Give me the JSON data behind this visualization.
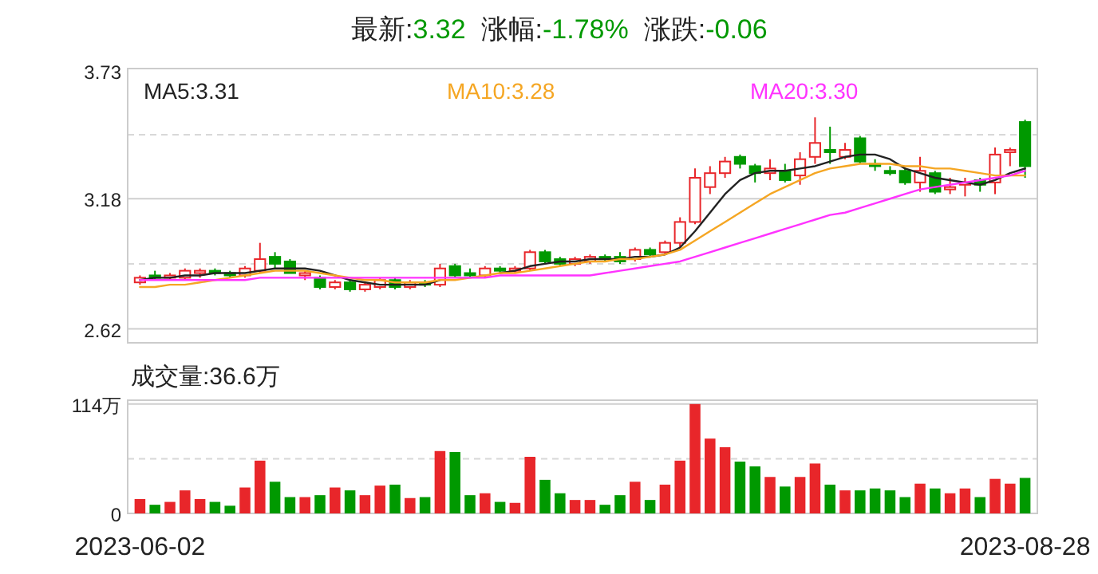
{
  "chart_data": [
    {
      "type": "candlestick",
      "title": "最新:3.32  涨幅:-1.78%  涨跌:-0.06",
      "categories": [
        null,
        null,
        null,
        null,
        null,
        null,
        null,
        null,
        null,
        null,
        null,
        null,
        null,
        null,
        null,
        null,
        null,
        null,
        null,
        null,
        null,
        null,
        null,
        null,
        null,
        null,
        null,
        null,
        null,
        null,
        null,
        null,
        null,
        null,
        null,
        null,
        null,
        null,
        null,
        null,
        null,
        null,
        null,
        null,
        null,
        null,
        null,
        null,
        null,
        null,
        null,
        null,
        null,
        null,
        null,
        null,
        null,
        null,
        null,
        null
      ],
      "ohlc": [
        [
          2.82,
          2.85,
          2.81,
          2.84
        ],
        [
          2.85,
          2.87,
          2.83,
          2.84
        ],
        [
          2.84,
          2.86,
          2.83,
          2.85
        ],
        [
          2.84,
          2.88,
          2.83,
          2.87
        ],
        [
          2.86,
          2.88,
          2.84,
          2.87
        ],
        [
          2.87,
          2.88,
          2.85,
          2.86
        ],
        [
          2.86,
          2.87,
          2.84,
          2.85
        ],
        [
          2.85,
          2.89,
          2.84,
          2.88
        ],
        [
          2.87,
          2.99,
          2.86,
          2.92
        ],
        [
          2.93,
          2.95,
          2.88,
          2.9
        ],
        [
          2.91,
          2.92,
          2.86,
          2.86
        ],
        [
          2.85,
          2.87,
          2.83,
          2.86
        ],
        [
          2.84,
          2.85,
          2.79,
          2.8
        ],
        [
          2.8,
          2.83,
          2.79,
          2.82
        ],
        [
          2.82,
          2.83,
          2.78,
          2.79
        ],
        [
          2.79,
          2.82,
          2.78,
          2.81
        ],
        [
          2.8,
          2.84,
          2.79,
          2.83
        ],
        [
          2.83,
          2.84,
          2.79,
          2.8
        ],
        [
          2.8,
          2.83,
          2.79,
          2.82
        ],
        [
          2.82,
          2.83,
          2.8,
          2.81
        ],
        [
          2.81,
          2.9,
          2.8,
          2.88
        ],
        [
          2.89,
          2.9,
          2.84,
          2.85
        ],
        [
          2.86,
          2.88,
          2.84,
          2.85
        ],
        [
          2.85,
          2.89,
          2.84,
          2.88
        ],
        [
          2.88,
          2.89,
          2.86,
          2.87
        ],
        [
          2.87,
          2.89,
          2.86,
          2.88
        ],
        [
          2.88,
          2.96,
          2.87,
          2.95
        ],
        [
          2.95,
          2.96,
          2.9,
          2.91
        ],
        [
          2.92,
          2.93,
          2.89,
          2.9
        ],
        [
          2.9,
          2.93,
          2.89,
          2.92
        ],
        [
          2.91,
          2.94,
          2.9,
          2.93
        ],
        [
          2.93,
          2.94,
          2.91,
          2.92
        ],
        [
          2.93,
          2.95,
          2.9,
          2.91
        ],
        [
          2.92,
          2.97,
          2.91,
          2.96
        ],
        [
          2.96,
          2.97,
          2.93,
          2.94
        ],
        [
          2.95,
          3.0,
          2.94,
          2.99
        ],
        [
          2.99,
          3.1,
          2.97,
          3.08
        ],
        [
          3.08,
          3.31,
          3.07,
          3.27
        ],
        [
          3.23,
          3.32,
          3.2,
          3.29
        ],
        [
          3.29,
          3.36,
          3.27,
          3.34
        ],
        [
          3.36,
          3.37,
          3.31,
          3.33
        ],
        [
          3.32,
          3.33,
          3.25,
          3.29
        ],
        [
          3.29,
          3.35,
          3.26,
          3.31
        ],
        [
          3.3,
          3.33,
          3.25,
          3.26
        ],
        [
          3.28,
          3.38,
          3.24,
          3.35
        ],
        [
          3.36,
          3.53,
          3.33,
          3.42
        ],
        [
          3.39,
          3.49,
          3.33,
          3.38
        ],
        [
          3.36,
          3.42,
          3.35,
          3.39
        ],
        [
          3.44,
          3.45,
          3.33,
          3.34
        ],
        [
          3.33,
          3.35,
          3.3,
          3.32
        ],
        [
          3.3,
          3.32,
          3.28,
          3.29
        ],
        [
          3.3,
          3.31,
          3.24,
          3.25
        ],
        [
          3.25,
          3.36,
          3.21,
          3.3
        ],
        [
          3.29,
          3.3,
          3.2,
          3.21
        ],
        [
          3.22,
          3.27,
          3.2,
          3.23
        ],
        [
          3.24,
          3.27,
          3.19,
          3.25
        ],
        [
          3.26,
          3.27,
          3.21,
          3.24
        ],
        [
          3.25,
          3.4,
          3.2,
          3.37
        ],
        [
          3.38,
          3.4,
          3.32,
          3.39
        ],
        [
          3.51,
          3.52,
          3.27,
          3.32
        ]
      ],
      "colors": [
        "#e8262a",
        "#009900",
        "#e8262a",
        "#e8262a",
        "#e8262a",
        "#009900",
        "#009900",
        "#e8262a",
        "#e8262a",
        "#009900",
        "#009900",
        "#e8262a",
        "#009900",
        "#e8262a",
        "#009900",
        "#e8262a",
        "#e8262a",
        "#009900",
        "#e8262a",
        "#009900",
        "#e8262a",
        "#009900",
        "#009900",
        "#e8262a",
        "#009900",
        "#e8262a",
        "#e8262a",
        "#009900",
        "#009900",
        "#e8262a",
        "#e8262a",
        "#009900",
        "#009900",
        "#e8262a",
        "#009900",
        "#e8262a",
        "#e8262a",
        "#e8262a",
        "#e8262a",
        "#e8262a",
        "#009900",
        "#009900",
        "#e8262a",
        "#009900",
        "#e8262a",
        "#e8262a",
        "#009900",
        "#e8262a",
        "#009900",
        "#009900",
        "#009900",
        "#009900",
        "#e8262a",
        "#009900",
        "#e8262a",
        "#e8262a",
        "#009900",
        "#e8262a",
        "#e8262a",
        "#009900"
      ],
      "series": [
        {
          "type": "line",
          "name": "MA5:3.31",
          "color": "#222222",
          "values": [
            2.83,
            2.84,
            2.84,
            2.85,
            2.85,
            2.86,
            2.86,
            2.86,
            2.87,
            2.88,
            2.88,
            2.88,
            2.87,
            2.85,
            2.83,
            2.82,
            2.81,
            2.81,
            2.81,
            2.81,
            2.83,
            null,
            null,
            null,
            2.86,
            2.87,
            2.89,
            2.9,
            2.91,
            2.91,
            2.92,
            2.92,
            2.92,
            2.93,
            2.93,
            2.94,
            2.97,
            3.04,
            3.12,
            3.2,
            3.26,
            3.29,
            3.3,
            3.3,
            3.31,
            3.32,
            3.34,
            3.36,
            3.37,
            3.37,
            3.35,
            3.31,
            3.29,
            3.27,
            3.26,
            3.25,
            3.24,
            3.26,
            3.29,
            3.31
          ]
        },
        {
          "type": "line",
          "name": "MA10:3.28",
          "color": "#f5a623",
          "values": [
            2.8,
            2.8,
            2.81,
            2.81,
            2.82,
            2.83,
            2.84,
            2.85,
            2.86,
            2.87,
            2.87,
            2.87,
            2.86,
            2.85,
            2.84,
            2.83,
            2.83,
            2.82,
            2.82,
            2.82,
            2.83,
            2.83,
            2.84,
            2.85,
            2.86,
            2.86,
            2.87,
            2.88,
            2.89,
            2.9,
            2.91,
            2.91,
            2.92,
            2.92,
            2.93,
            2.94,
            2.96,
            3.0,
            3.04,
            3.08,
            3.12,
            3.16,
            3.2,
            3.23,
            3.26,
            3.29,
            3.31,
            3.32,
            3.33,
            3.33,
            3.33,
            3.32,
            3.32,
            3.31,
            3.31,
            3.3,
            3.29,
            3.28,
            3.28,
            3.28
          ]
        },
        {
          "type": "line",
          "name": "MA20:3.30",
          "color": "#ff33ff",
          "values": [
            2.83,
            2.83,
            2.83,
            2.83,
            2.83,
            2.83,
            2.83,
            2.83,
            2.84,
            2.84,
            2.84,
            2.84,
            2.84,
            2.84,
            2.84,
            2.84,
            2.84,
            2.84,
            2.84,
            2.84,
            2.84,
            2.84,
            2.84,
            2.84,
            2.85,
            2.85,
            2.85,
            2.85,
            2.85,
            2.85,
            2.85,
            2.86,
            2.87,
            2.88,
            2.89,
            2.9,
            2.91,
            2.93,
            2.95,
            2.97,
            2.99,
            3.01,
            3.03,
            3.05,
            3.07,
            3.09,
            3.11,
            3.12,
            3.14,
            3.16,
            3.18,
            3.2,
            3.22,
            3.23,
            3.24,
            3.25,
            3.26,
            3.27,
            3.28,
            3.3
          ]
        }
      ],
      "ylim": [
        2.56,
        3.74
      ],
      "yticks": [
        2.62,
        {
          "value": 2.9,
          "label": null
        },
        3.18,
        {
          "value": 3.455,
          "label": null
        },
        3.73
      ],
      "grid": "y",
      "legend": "top",
      "tick_labels": "y"
    },
    {
      "type": "bar",
      "title": "成交量:36.6万",
      "categories": [
        "2023-06-02",
        null,
        null,
        null,
        null,
        null,
        null,
        null,
        null,
        null,
        null,
        null,
        null,
        null,
        null,
        null,
        null,
        null,
        null,
        null,
        null,
        null,
        null,
        null,
        null,
        null,
        null,
        null,
        null,
        null,
        null,
        null,
        null,
        null,
        null,
        null,
        null,
        null,
        null,
        null,
        null,
        null,
        null,
        null,
        null,
        null,
        null,
        null,
        null,
        null,
        null,
        null,
        null,
        null,
        null,
        null,
        null,
        null,
        null,
        "2023-08-28"
      ],
      "values": [
        15,
        9,
        12,
        24,
        15,
        12,
        8,
        27,
        55,
        33,
        17,
        17,
        19,
        27,
        24,
        19,
        29,
        30,
        16,
        17,
        65,
        64,
        19,
        21,
        12,
        11,
        59,
        35,
        21,
        14,
        14,
        9,
        19,
        33,
        14,
        30,
        55,
        114,
        78,
        69,
        54,
        49,
        38,
        28,
        38,
        52,
        30,
        24,
        24,
        26,
        24,
        17,
        31,
        26,
        21,
        26,
        17,
        36,
        31,
        37
      ],
      "colors": [
        "#e8262a",
        "#009900",
        "#e8262a",
        "#e8262a",
        "#e8262a",
        "#009900",
        "#009900",
        "#e8262a",
        "#e8262a",
        "#009900",
        "#009900",
        "#e8262a",
        "#009900",
        "#e8262a",
        "#009900",
        "#e8262a",
        "#e8262a",
        "#009900",
        "#e8262a",
        "#009900",
        "#e8262a",
        "#009900",
        "#009900",
        "#e8262a",
        "#009900",
        "#e8262a",
        "#e8262a",
        "#009900",
        "#009900",
        "#e8262a",
        "#e8262a",
        "#009900",
        "#009900",
        "#e8262a",
        "#009900",
        "#e8262a",
        "#e8262a",
        "#e8262a",
        "#e8262a",
        "#e8262a",
        "#009900",
        "#009900",
        "#e8262a",
        "#009900",
        "#e8262a",
        "#e8262a",
        "#009900",
        "#e8262a",
        "#009900",
        "#009900",
        "#009900",
        "#009900",
        "#e8262a",
        "#009900",
        "#e8262a",
        "#e8262a",
        "#009900",
        "#e8262a",
        "#e8262a",
        "#009900"
      ],
      "ylim": [
        0,
        118
      ],
      "yticks": [
        0,
        {
          "value": 57,
          "label": null
        },
        {
          "value": 114,
          "label": "114万"
        }
      ],
      "grid": "y"
    }
  ]
}
